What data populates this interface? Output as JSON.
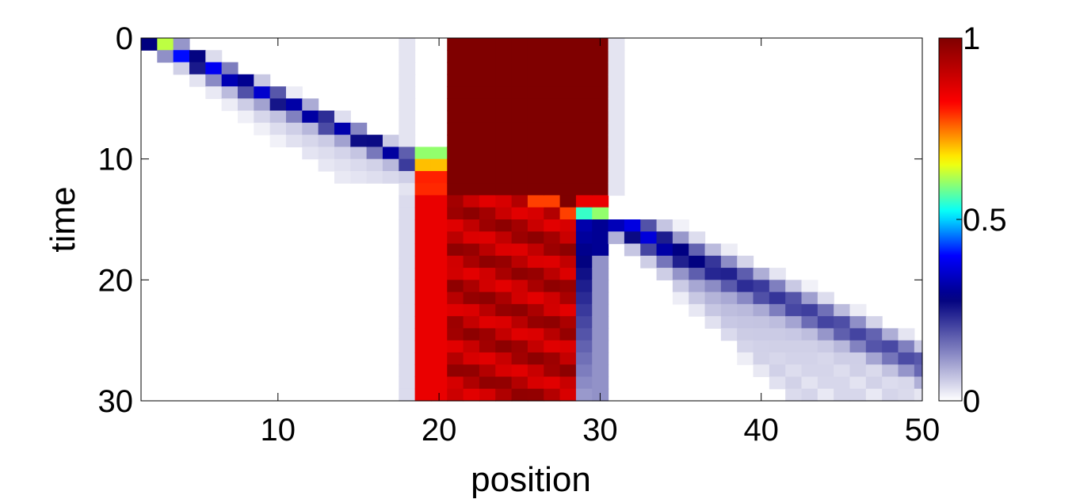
{
  "chart_data": {
    "type": "heatmap",
    "xlabel": "position",
    "ylabel": "time",
    "xlim": [
      1.5,
      50
    ],
    "ylim": [
      0,
      30
    ],
    "y_reversed": true,
    "x_ticks": [
      10,
      20,
      30,
      40,
      50
    ],
    "x_tick_labels": [
      "10",
      "20",
      "30",
      "40",
      "50"
    ],
    "y_ticks": [
      0,
      10,
      20,
      30
    ],
    "y_tick_labels": [
      "0",
      "10",
      "20",
      "30"
    ],
    "grid": false,
    "colorbar": {
      "range": [
        0,
        1
      ],
      "ticks": [
        0,
        0.5,
        1
      ],
      "tick_labels": [
        "0",
        "0.5",
        "1"
      ],
      "colormap": [
        {
          "v": 0.0,
          "color": "#ffffff"
        },
        {
          "v": 0.28,
          "color": "#00007f"
        },
        {
          "v": 0.4,
          "color": "#0000ff"
        },
        {
          "v": 0.52,
          "color": "#00ffff"
        },
        {
          "v": 0.66,
          "color": "#ffff00"
        },
        {
          "v": 0.82,
          "color": "#ff0000"
        },
        {
          "v": 1.0,
          "color": "#7f0000"
        }
      ]
    },
    "grid_size": {
      "positions": [
        2,
        50
      ],
      "times": [
        0,
        30
      ]
    },
    "features": {
      "incoming_packet": {
        "start_position": 2,
        "speed": 1.6,
        "peak_value": 0.3,
        "until_time": 11
      },
      "barrier_region": {
        "positions": [
          21,
          30
        ],
        "value": 1.0,
        "until_time": 13
      },
      "left_spill_region": {
        "positions": [
          19,
          20
        ],
        "value": 0.85,
        "from_time": 11
      },
      "interior_after_impact": {
        "positions": [
          21,
          28
        ],
        "value": 0.9,
        "from_time": 13
      },
      "exit_column": {
        "position": 29,
        "value": 0.3,
        "from_time": 15
      },
      "transmitted_packet": {
        "start_position": 31,
        "start_time": 15,
        "speed": 1.6,
        "peak_value": 0.2
      }
    }
  }
}
